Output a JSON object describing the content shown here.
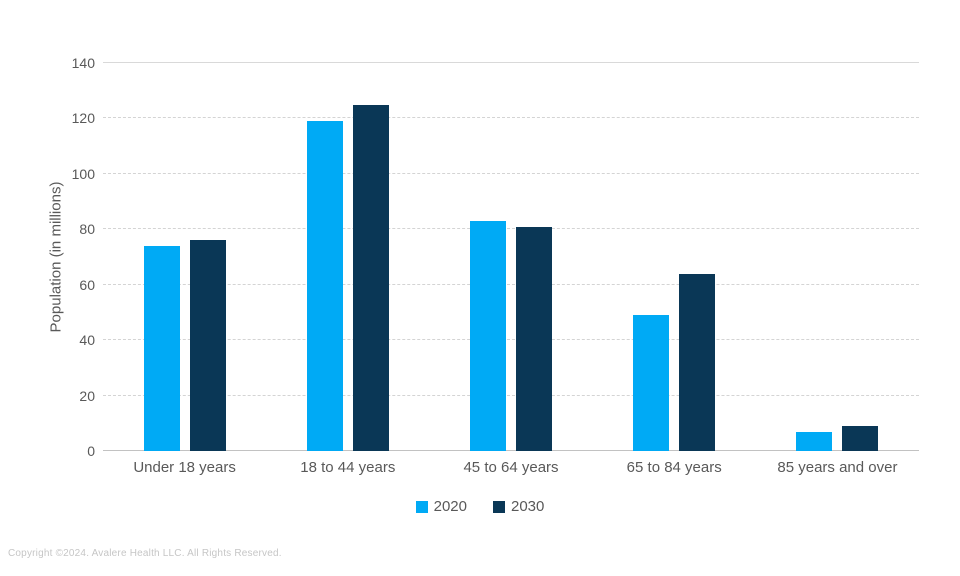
{
  "chart_data": {
    "type": "bar",
    "title": "",
    "categories": [
      "Under 18 years",
      "18 to 44 years",
      "45 to 64 years",
      "65 to 84 years",
      "85 years and over"
    ],
    "series": [
      {
        "name": "2020",
        "color": "#00AAF5",
        "values": [
          74,
          119,
          83,
          49,
          7
        ]
      },
      {
        "name": "2030",
        "color": "#0A3756",
        "values": [
          76,
          125,
          81,
          64,
          9
        ]
      }
    ],
    "xlabel": "",
    "ylabel": "Population (in millions)",
    "ylim": [
      0,
      140
    ],
    "yticks": [
      0,
      20,
      40,
      60,
      80,
      100,
      120,
      140
    ],
    "grid": "horizontal-dashed",
    "legend_position": "bottom"
  },
  "footer": {
    "copyright": "Copyright ©2024. Avalere Health LLC. All Rights Reserved."
  }
}
